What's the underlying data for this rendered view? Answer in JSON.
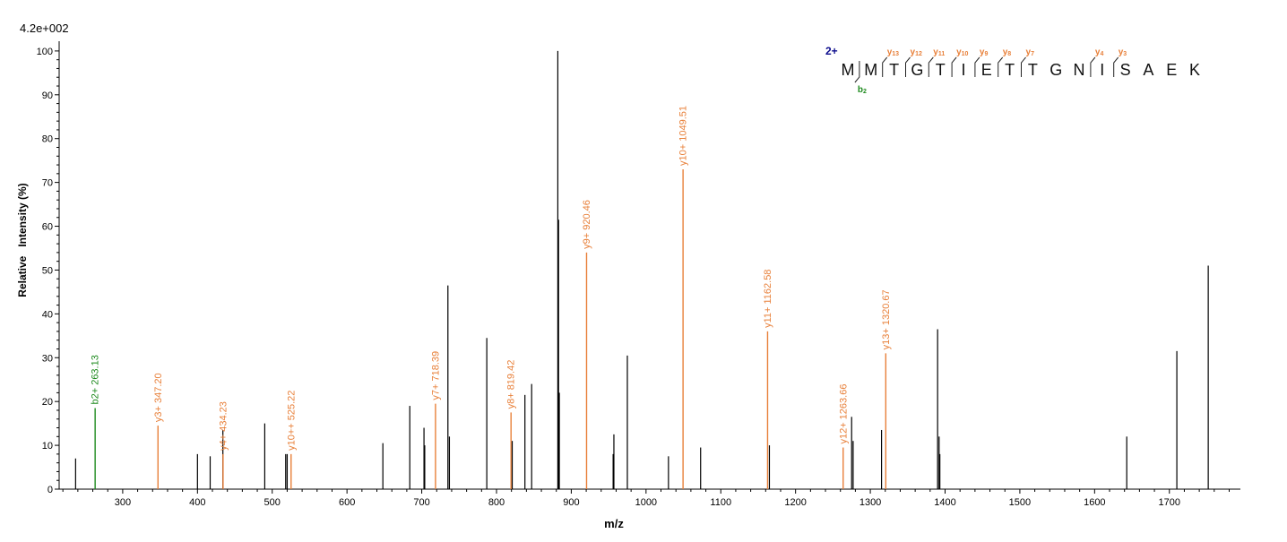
{
  "header": {
    "scale_label": "4.2e+002"
  },
  "peptide": {
    "charge": "2+",
    "residues": [
      "M",
      "M",
      "T",
      "G",
      "T",
      "I",
      "E",
      "T",
      "T",
      "G",
      "N",
      "I",
      "S",
      "A",
      "E",
      "K"
    ],
    "y_ions": [
      {
        "label": "y",
        "sub": "13",
        "after": 2
      },
      {
        "label": "y",
        "sub": "12",
        "after": 3
      },
      {
        "label": "y",
        "sub": "11",
        "after": 4
      },
      {
        "label": "y",
        "sub": "10",
        "after": 5
      },
      {
        "label": "y",
        "sub": "9",
        "after": 6
      },
      {
        "label": "y",
        "sub": "8",
        "after": 7
      },
      {
        "label": "y",
        "sub": "7",
        "after": 8
      },
      {
        "label": "y",
        "sub": "4",
        "after": 11
      },
      {
        "label": "y",
        "sub": "3",
        "after": 12
      }
    ],
    "b_ions": [
      {
        "label": "b",
        "sub": "2",
        "after": 1
      }
    ]
  },
  "colors": {
    "y_ion": "#e8803a",
    "b_ion": "#1e8a1e",
    "unmatched": "#000000",
    "axis": "#000000",
    "charge": "#0b0b8c"
  },
  "chart_data": {
    "type": "bar",
    "xlabel": "m/z",
    "ylabel": "Relative   Intensity (%)",
    "xlim": [
      215,
      1795
    ],
    "ylim": [
      0,
      101
    ],
    "x_ticks": [
      300,
      400,
      500,
      600,
      700,
      800,
      900,
      1000,
      1100,
      1200,
      1300,
      1400,
      1500,
      1600,
      1700
    ],
    "y_ticks": [
      0,
      10,
      20,
      30,
      40,
      50,
      60,
      70,
      80,
      90,
      100
    ],
    "grid": false,
    "peaks": [
      {
        "mz": 237,
        "intensity": 7
      },
      {
        "mz": 263.13,
        "intensity": 18.5,
        "ion": "b",
        "label": "b2+ 263.13"
      },
      {
        "mz": 347.2,
        "intensity": 14.5,
        "ion": "y",
        "label": "y3+ 347.20"
      },
      {
        "mz": 400,
        "intensity": 8
      },
      {
        "mz": 417,
        "intensity": 7.5
      },
      {
        "mz": 434,
        "intensity": 13.5
      },
      {
        "mz": 434.23,
        "intensity": 8,
        "ion": "y",
        "label": "y4+ 434.23"
      },
      {
        "mz": 490,
        "intensity": 15
      },
      {
        "mz": 518,
        "intensity": 8
      },
      {
        "mz": 520,
        "intensity": 8
      },
      {
        "mz": 525.22,
        "intensity": 8,
        "ion": "y",
        "label": "y10++ 525.22"
      },
      {
        "mz": 648,
        "intensity": 10.5
      },
      {
        "mz": 684,
        "intensity": 19
      },
      {
        "mz": 703,
        "intensity": 14
      },
      {
        "mz": 704,
        "intensity": 10
      },
      {
        "mz": 718.39,
        "intensity": 19.5,
        "ion": "y",
        "label": "y7+ 718.39"
      },
      {
        "mz": 735,
        "intensity": 46.5
      },
      {
        "mz": 737,
        "intensity": 12
      },
      {
        "mz": 787,
        "intensity": 34.5
      },
      {
        "mz": 819.42,
        "intensity": 17.5,
        "ion": "y",
        "label": "y8+ 819.42"
      },
      {
        "mz": 821,
        "intensity": 11
      },
      {
        "mz": 838,
        "intensity": 21.5
      },
      {
        "mz": 847,
        "intensity": 24
      },
      {
        "mz": 882,
        "intensity": 100
      },
      {
        "mz": 883,
        "intensity": 61.5
      },
      {
        "mz": 884,
        "intensity": 22
      },
      {
        "mz": 920.46,
        "intensity": 54,
        "ion": "y",
        "label": "y9+ 920.46"
      },
      {
        "mz": 956,
        "intensity": 8
      },
      {
        "mz": 957,
        "intensity": 12.5
      },
      {
        "mz": 975,
        "intensity": 30.5
      },
      {
        "mz": 1030,
        "intensity": 7.5
      },
      {
        "mz": 1049.51,
        "intensity": 73,
        "ion": "y",
        "label": "y10+ 1049.51"
      },
      {
        "mz": 1073,
        "intensity": 9.5
      },
      {
        "mz": 1162.58,
        "intensity": 36,
        "ion": "y",
        "label": "y11+ 1162.58"
      },
      {
        "mz": 1165,
        "intensity": 10
      },
      {
        "mz": 1263.66,
        "intensity": 9.5,
        "ion": "y",
        "label": "y12+ 1263.66"
      },
      {
        "mz": 1275,
        "intensity": 16.5
      },
      {
        "mz": 1277,
        "intensity": 11
      },
      {
        "mz": 1315,
        "intensity": 13.5
      },
      {
        "mz": 1320.67,
        "intensity": 31,
        "ion": "y",
        "label": "y13+ 1320.67"
      },
      {
        "mz": 1390,
        "intensity": 36.5
      },
      {
        "mz": 1392,
        "intensity": 12
      },
      {
        "mz": 1393,
        "intensity": 8
      },
      {
        "mz": 1643,
        "intensity": 12
      },
      {
        "mz": 1710,
        "intensity": 31.5
      },
      {
        "mz": 1752,
        "intensity": 51
      }
    ]
  }
}
